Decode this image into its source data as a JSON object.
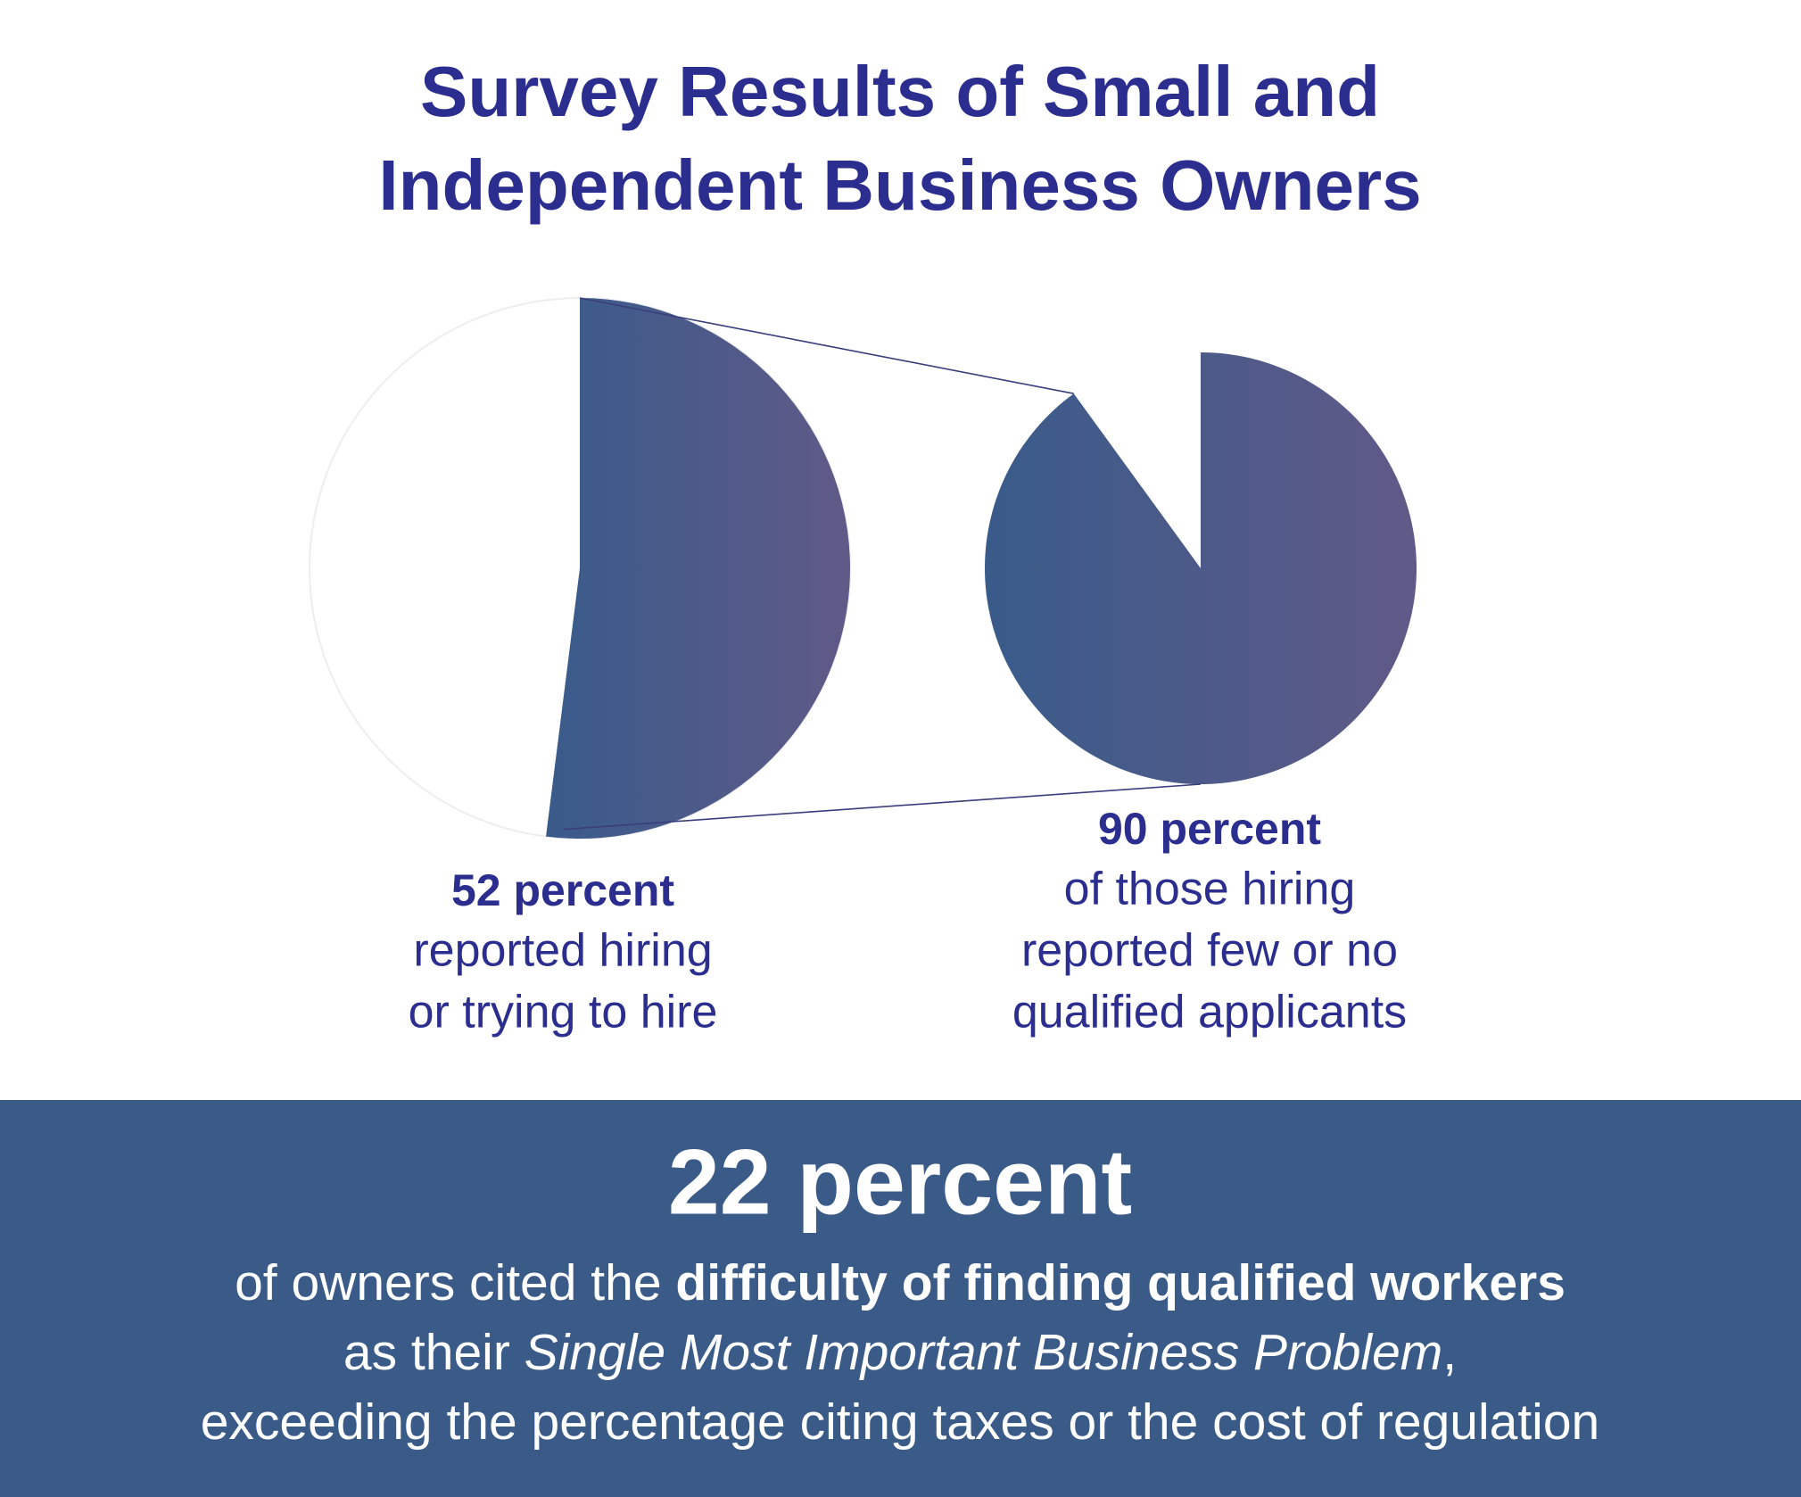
{
  "title_lines": [
    "Survey Results of Small and",
    "Independent Business Owners"
  ],
  "chart_data": [
    {
      "type": "pie",
      "values": [
        52
      ],
      "value_labels": [
        "52 percent"
      ],
      "colors": [
        "#395b8a",
        "#605a88"
      ],
      "caption": [
        "reported hiring",
        "or trying to hire"
      ]
    },
    {
      "type": "pie",
      "values": [
        90
      ],
      "value_labels": [
        "90 percent"
      ],
      "colors": [
        "#395b8a",
        "#605a88"
      ],
      "caption": [
        "of those hiring",
        "reported few or no",
        "qualified applicants"
      ]
    }
  ],
  "callout": {
    "headline": "22 percent",
    "lines": [
      [
        {
          "text": "of owners cited the ",
          "style": "normal"
        },
        {
          "text": "difficulty of finding qualified workers",
          "style": "bold"
        }
      ],
      [
        {
          "text": "as their ",
          "style": "normal"
        },
        {
          "text": "Single Most Important Business Problem",
          "style": "italic"
        },
        {
          "text": ",",
          "style": "normal"
        }
      ],
      [
        {
          "text": "exceeding the percentage citing taxes or the cost of regulation",
          "style": "normal"
        }
      ]
    ]
  }
}
